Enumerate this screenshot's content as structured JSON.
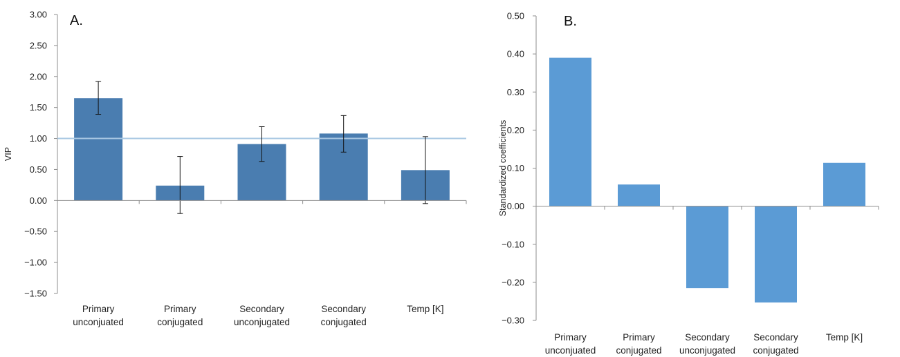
{
  "chart_data": [
    {
      "type": "bar",
      "panel_label": "A.",
      "categories": [
        [
          "Primary",
          "unconjuated"
        ],
        [
          "Primary",
          "conjugated"
        ],
        [
          "Secondary",
          "unconjugated"
        ],
        [
          "Secondary",
          "conjugated"
        ],
        [
          "Temp [K]"
        ]
      ],
      "values": [
        1.65,
        0.24,
        0.91,
        1.08,
        0.49
      ],
      "error_low": [
        1.39,
        -0.21,
        0.63,
        0.78,
        -0.05
      ],
      "error_high": [
        1.92,
        0.71,
        1.19,
        1.37,
        1.03
      ],
      "reference_line": 1.0,
      "ylabel": "VIP",
      "ylim": [
        -1.5,
        3.0
      ],
      "yticks": [
        "3.00",
        "2.50",
        "2.00",
        "1.50",
        "1.00",
        "0.50",
        "0.00",
        "−0.50",
        "−1.00",
        "−1.50"
      ],
      "bar_color": "#4a7db0",
      "reference_color": "#a9c8e3",
      "grid": false
    },
    {
      "type": "bar",
      "panel_label": "B.",
      "categories": [
        [
          "Primary",
          "unconjuated"
        ],
        [
          "Primary",
          "conjugated"
        ],
        [
          "Secondary",
          "unconjugated"
        ],
        [
          "Secondary",
          "conjugated"
        ],
        [
          "Temp [K]"
        ]
      ],
      "values": [
        0.39,
        0.057,
        -0.215,
        -0.253,
        0.114
      ],
      "ylabel": "Standardized coefficients",
      "ylim": [
        -0.3,
        0.5
      ],
      "yticks": [
        "0.50",
        "0.40",
        "0.30",
        "0.20",
        "0.10",
        "0.00",
        "−0.10",
        "−0.20",
        "−0.30"
      ],
      "bar_color": "#5b9bd5",
      "grid": false
    }
  ]
}
